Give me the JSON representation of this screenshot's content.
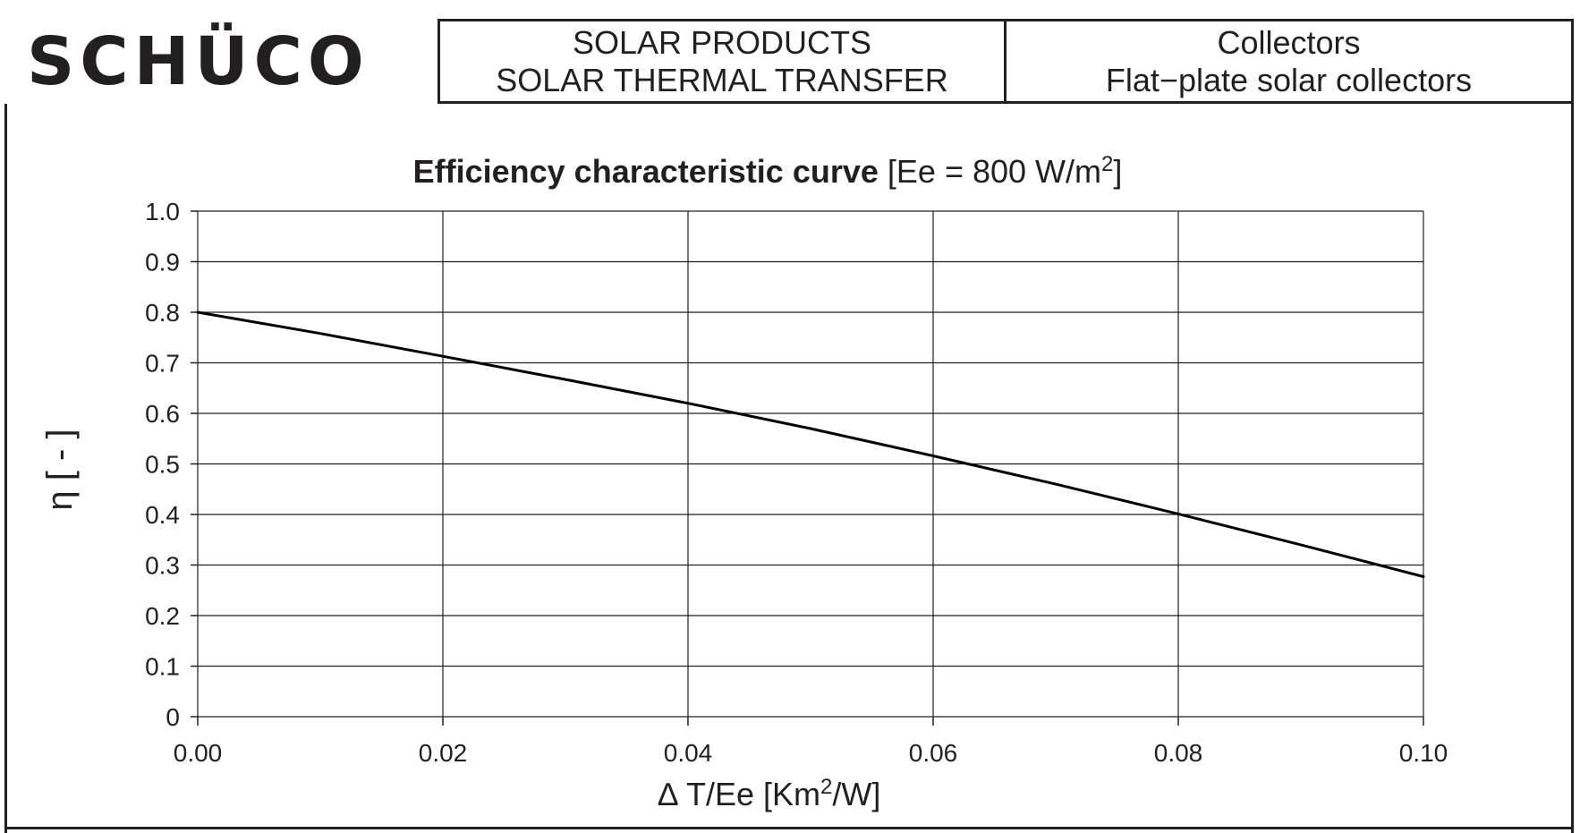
{
  "logo": {
    "text": "SCHÜCO"
  },
  "header": {
    "products_line1": "SOLAR PRODUCTS",
    "products_line2": "SOLAR THERMAL TRANSFER",
    "collectors_line1": "Collectors",
    "collectors_line2": "Flat−plate solar collectors"
  },
  "colors": {
    "ink": "#231f20",
    "grid": "#231f20",
    "curve": "#000000"
  },
  "chart_data": {
    "type": "line",
    "title_bold": "Efficiency characteristic curve",
    "title_rest": "[Ee = 800 W/m",
    "title_sup": "2",
    "title_end": "]",
    "xlabel_pre": "∆ T/Ee [Km",
    "xlabel_sup": "2",
    "xlabel_post": "/W]",
    "ylabel": "η [ - ]",
    "xlim": [
      0,
      0.1
    ],
    "ylim": [
      0,
      1.0
    ],
    "x_ticks": [
      "0.00",
      "0.02",
      "0.04",
      "0.06",
      "0.08",
      "0.10"
    ],
    "x_tick_values": [
      0,
      0.02,
      0.04,
      0.06,
      0.08,
      0.1
    ],
    "y_ticks": [
      "0",
      "0.1",
      "0.2",
      "0.3",
      "0.4",
      "0.5",
      "0.6",
      "0.7",
      "0.8",
      "0.9",
      "1.0"
    ],
    "y_tick_values": [
      0,
      0.1,
      0.2,
      0.3,
      0.4,
      0.5,
      0.6,
      0.7,
      0.8,
      0.9,
      1.0
    ],
    "grid": true,
    "series": [
      {
        "x": [
          0,
          0.01,
          0.02,
          0.03,
          0.04,
          0.05,
          0.06,
          0.07,
          0.08,
          0.09,
          0.1
        ],
        "y": [
          0.8,
          0.758,
          0.713,
          0.667,
          0.62,
          0.57,
          0.516,
          0.46,
          0.401,
          0.34,
          0.277
        ]
      }
    ]
  }
}
